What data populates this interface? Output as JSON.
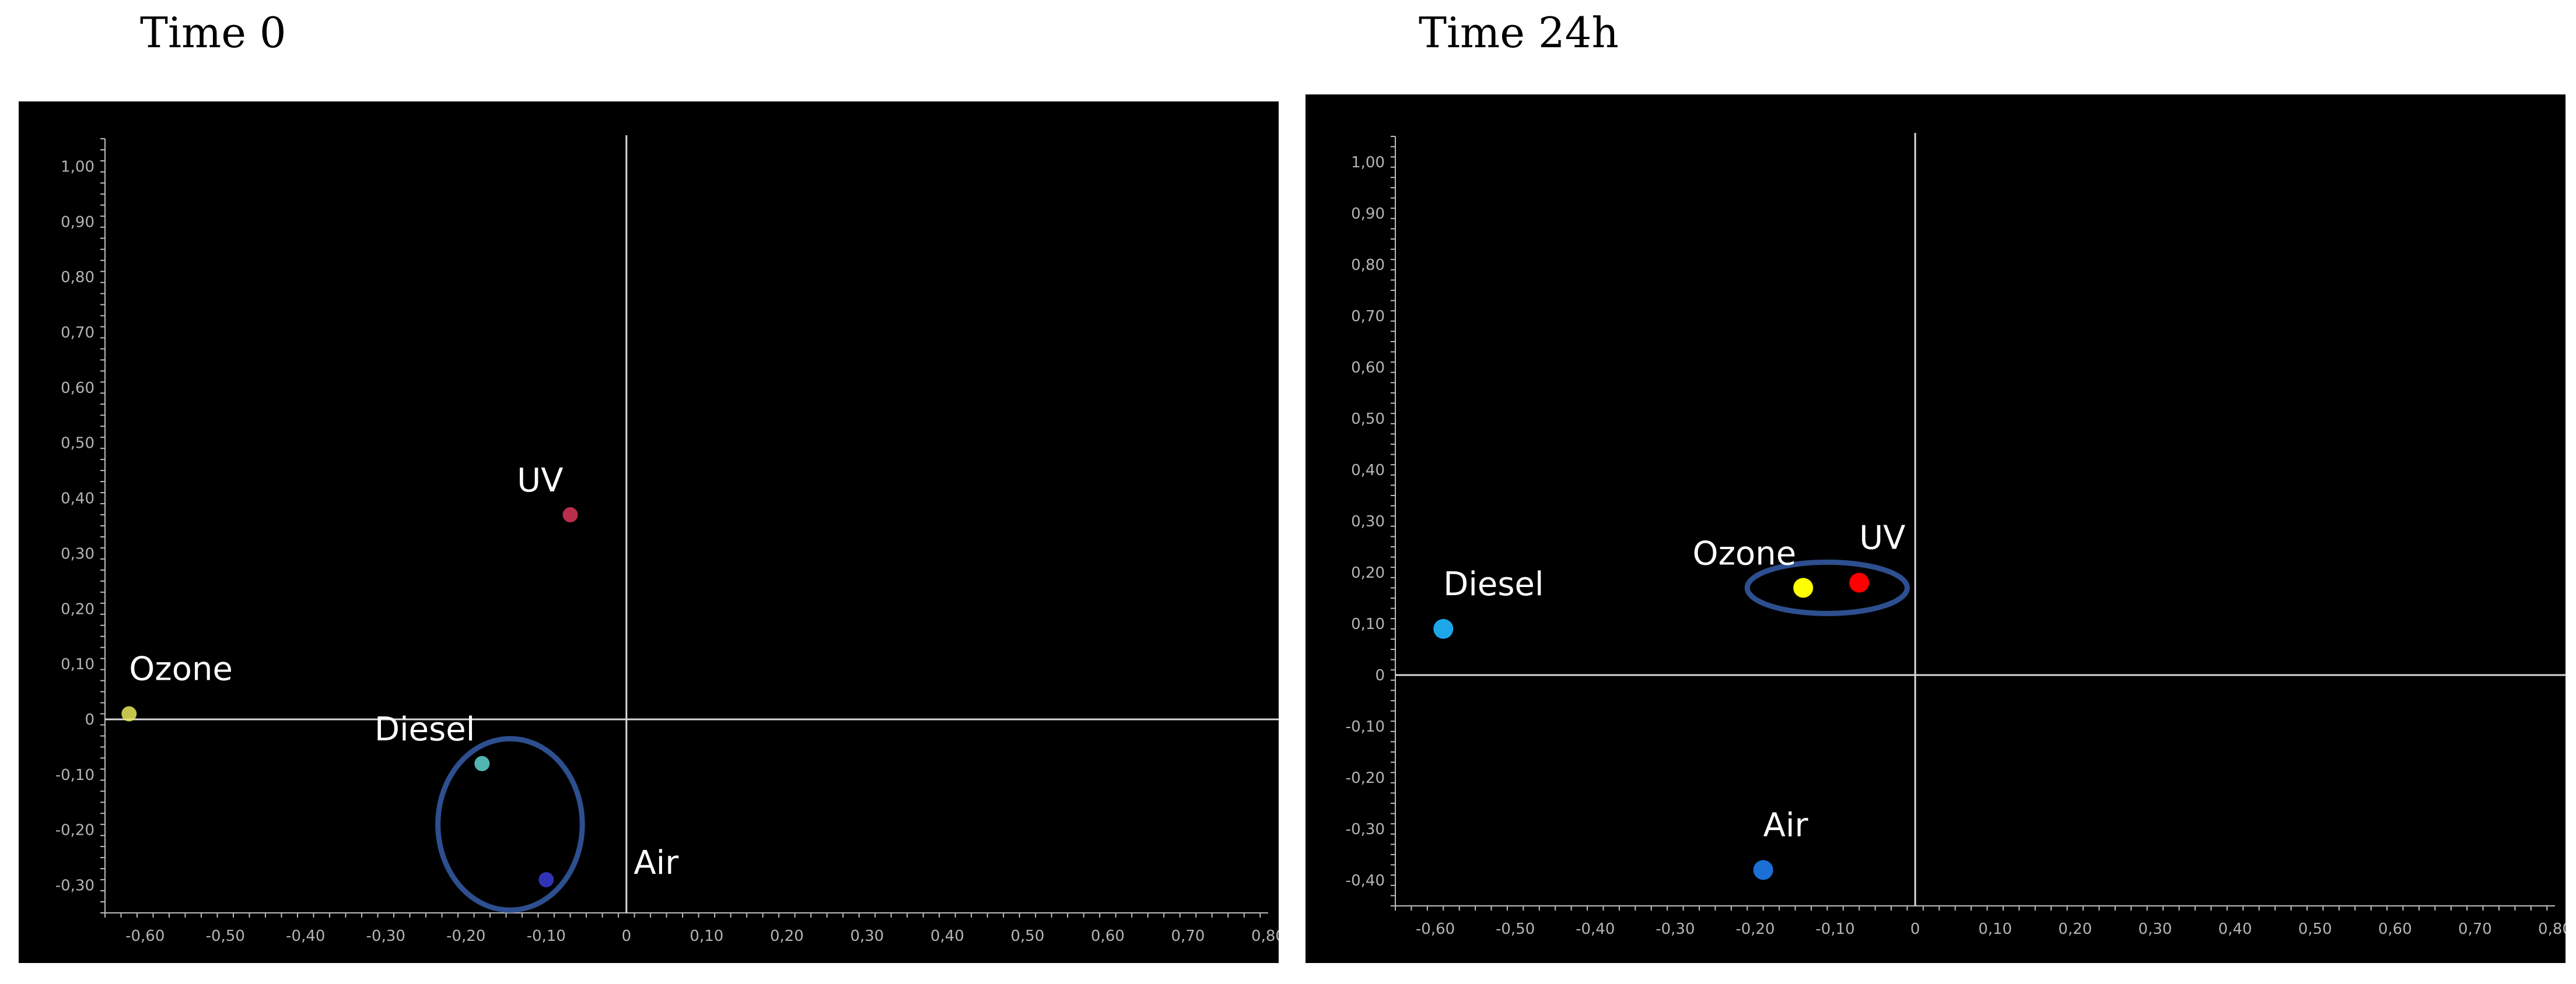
{
  "chart_data": [
    {
      "type": "scatter",
      "title": "Time 0",
      "xlim": [
        -0.65,
        0.8
      ],
      "ylim": [
        -0.35,
        1.05
      ],
      "x_ticks": [
        -0.6,
        -0.5,
        -0.4,
        -0.3,
        -0.2,
        -0.1,
        0,
        0.1,
        0.2,
        0.3,
        0.4,
        0.5,
        0.6,
        0.7,
        0.8
      ],
      "x_tick_labels": [
        "-0,60",
        "-0,50",
        "-0,40",
        "-0,30",
        "-0,20",
        "-0,10",
        "0",
        "0,10",
        "0,20",
        "0,30",
        "0,40",
        "0,50",
        "0,60",
        "0,70",
        "0,80"
      ],
      "y_ticks": [
        -0.3,
        -0.2,
        -0.1,
        0,
        0.1,
        0.2,
        0.3,
        0.4,
        0.5,
        0.6,
        0.7,
        0.8,
        0.9,
        1.0
      ],
      "y_tick_labels": [
        "-0,30",
        "-0,20",
        "-0,10",
        "0",
        "0,10",
        "0,20",
        "0,30",
        "0,40",
        "0,50",
        "0,60",
        "0,70",
        "0,80",
        "0,90",
        "1,00"
      ],
      "background": "#000000",
      "points": [
        {
          "label": "UV",
          "x": -0.07,
          "y": 0.37,
          "color": "#d9365a",
          "label_pos": "upper-left"
        },
        {
          "label": "Ozone",
          "x": -0.62,
          "y": 0.01,
          "color": "#e8e85c",
          "label_pos": "upper-right"
        },
        {
          "label": "Diesel",
          "x": -0.18,
          "y": -0.08,
          "color": "#5fd6d0",
          "label_pos": "upper-left"
        },
        {
          "label": "Air",
          "x": -0.1,
          "y": -0.29,
          "color": "#3b3bd6",
          "label_pos": "right"
        }
      ],
      "ellipse": {
        "cx": -0.145,
        "cy": -0.19,
        "rx": 0.09,
        "ry": 0.155,
        "color": "#2e4f8f"
      }
    },
    {
      "type": "scatter",
      "title": "Time 24h",
      "xlim": [
        -0.65,
        0.8
      ],
      "ylim": [
        -0.45,
        1.05
      ],
      "x_ticks": [
        -0.6,
        -0.5,
        -0.4,
        -0.3,
        -0.2,
        -0.1,
        0,
        0.1,
        0.2,
        0.3,
        0.4,
        0.5,
        0.6,
        0.7,
        0.8
      ],
      "x_tick_labels": [
        "-0,60",
        "-0,50",
        "-0,40",
        "-0,30",
        "-0,20",
        "-0,10",
        "0",
        "0,10",
        "0,20",
        "0,30",
        "0,40",
        "0,50",
        "0,60",
        "0,70",
        "0,80"
      ],
      "y_ticks": [
        -0.4,
        -0.3,
        -0.2,
        -0.1,
        0,
        0.1,
        0.2,
        0.3,
        0.4,
        0.5,
        0.6,
        0.7,
        0.8,
        0.9,
        1.0
      ],
      "y_tick_labels": [
        "-0,40",
        "-0,30",
        "-0,20",
        "-0,10",
        "0",
        "0,10",
        "0,20",
        "0,30",
        "0,40",
        "0,50",
        "0,60",
        "0,70",
        "0,80",
        "0,90",
        "1,00"
      ],
      "background": "#000000",
      "points": [
        {
          "label": "Diesel",
          "x": -0.59,
          "y": 0.09,
          "color": "#1ea7e8",
          "label_pos": "upper-right"
        },
        {
          "label": "Ozone",
          "x": -0.14,
          "y": 0.17,
          "color": "#ffff00",
          "label_pos": "upper-left"
        },
        {
          "label": "UV",
          "x": -0.07,
          "y": 0.18,
          "color": "#ff0000",
          "label_pos": "upper-right"
        },
        {
          "label": "Air",
          "x": -0.19,
          "y": -0.38,
          "color": "#1b6fd6",
          "label_pos": "upper-right"
        }
      ],
      "ellipse": {
        "cx": -0.11,
        "cy": 0.17,
        "rx": 0.1,
        "ry": 0.05,
        "color": "#2e4f8f"
      }
    }
  ]
}
